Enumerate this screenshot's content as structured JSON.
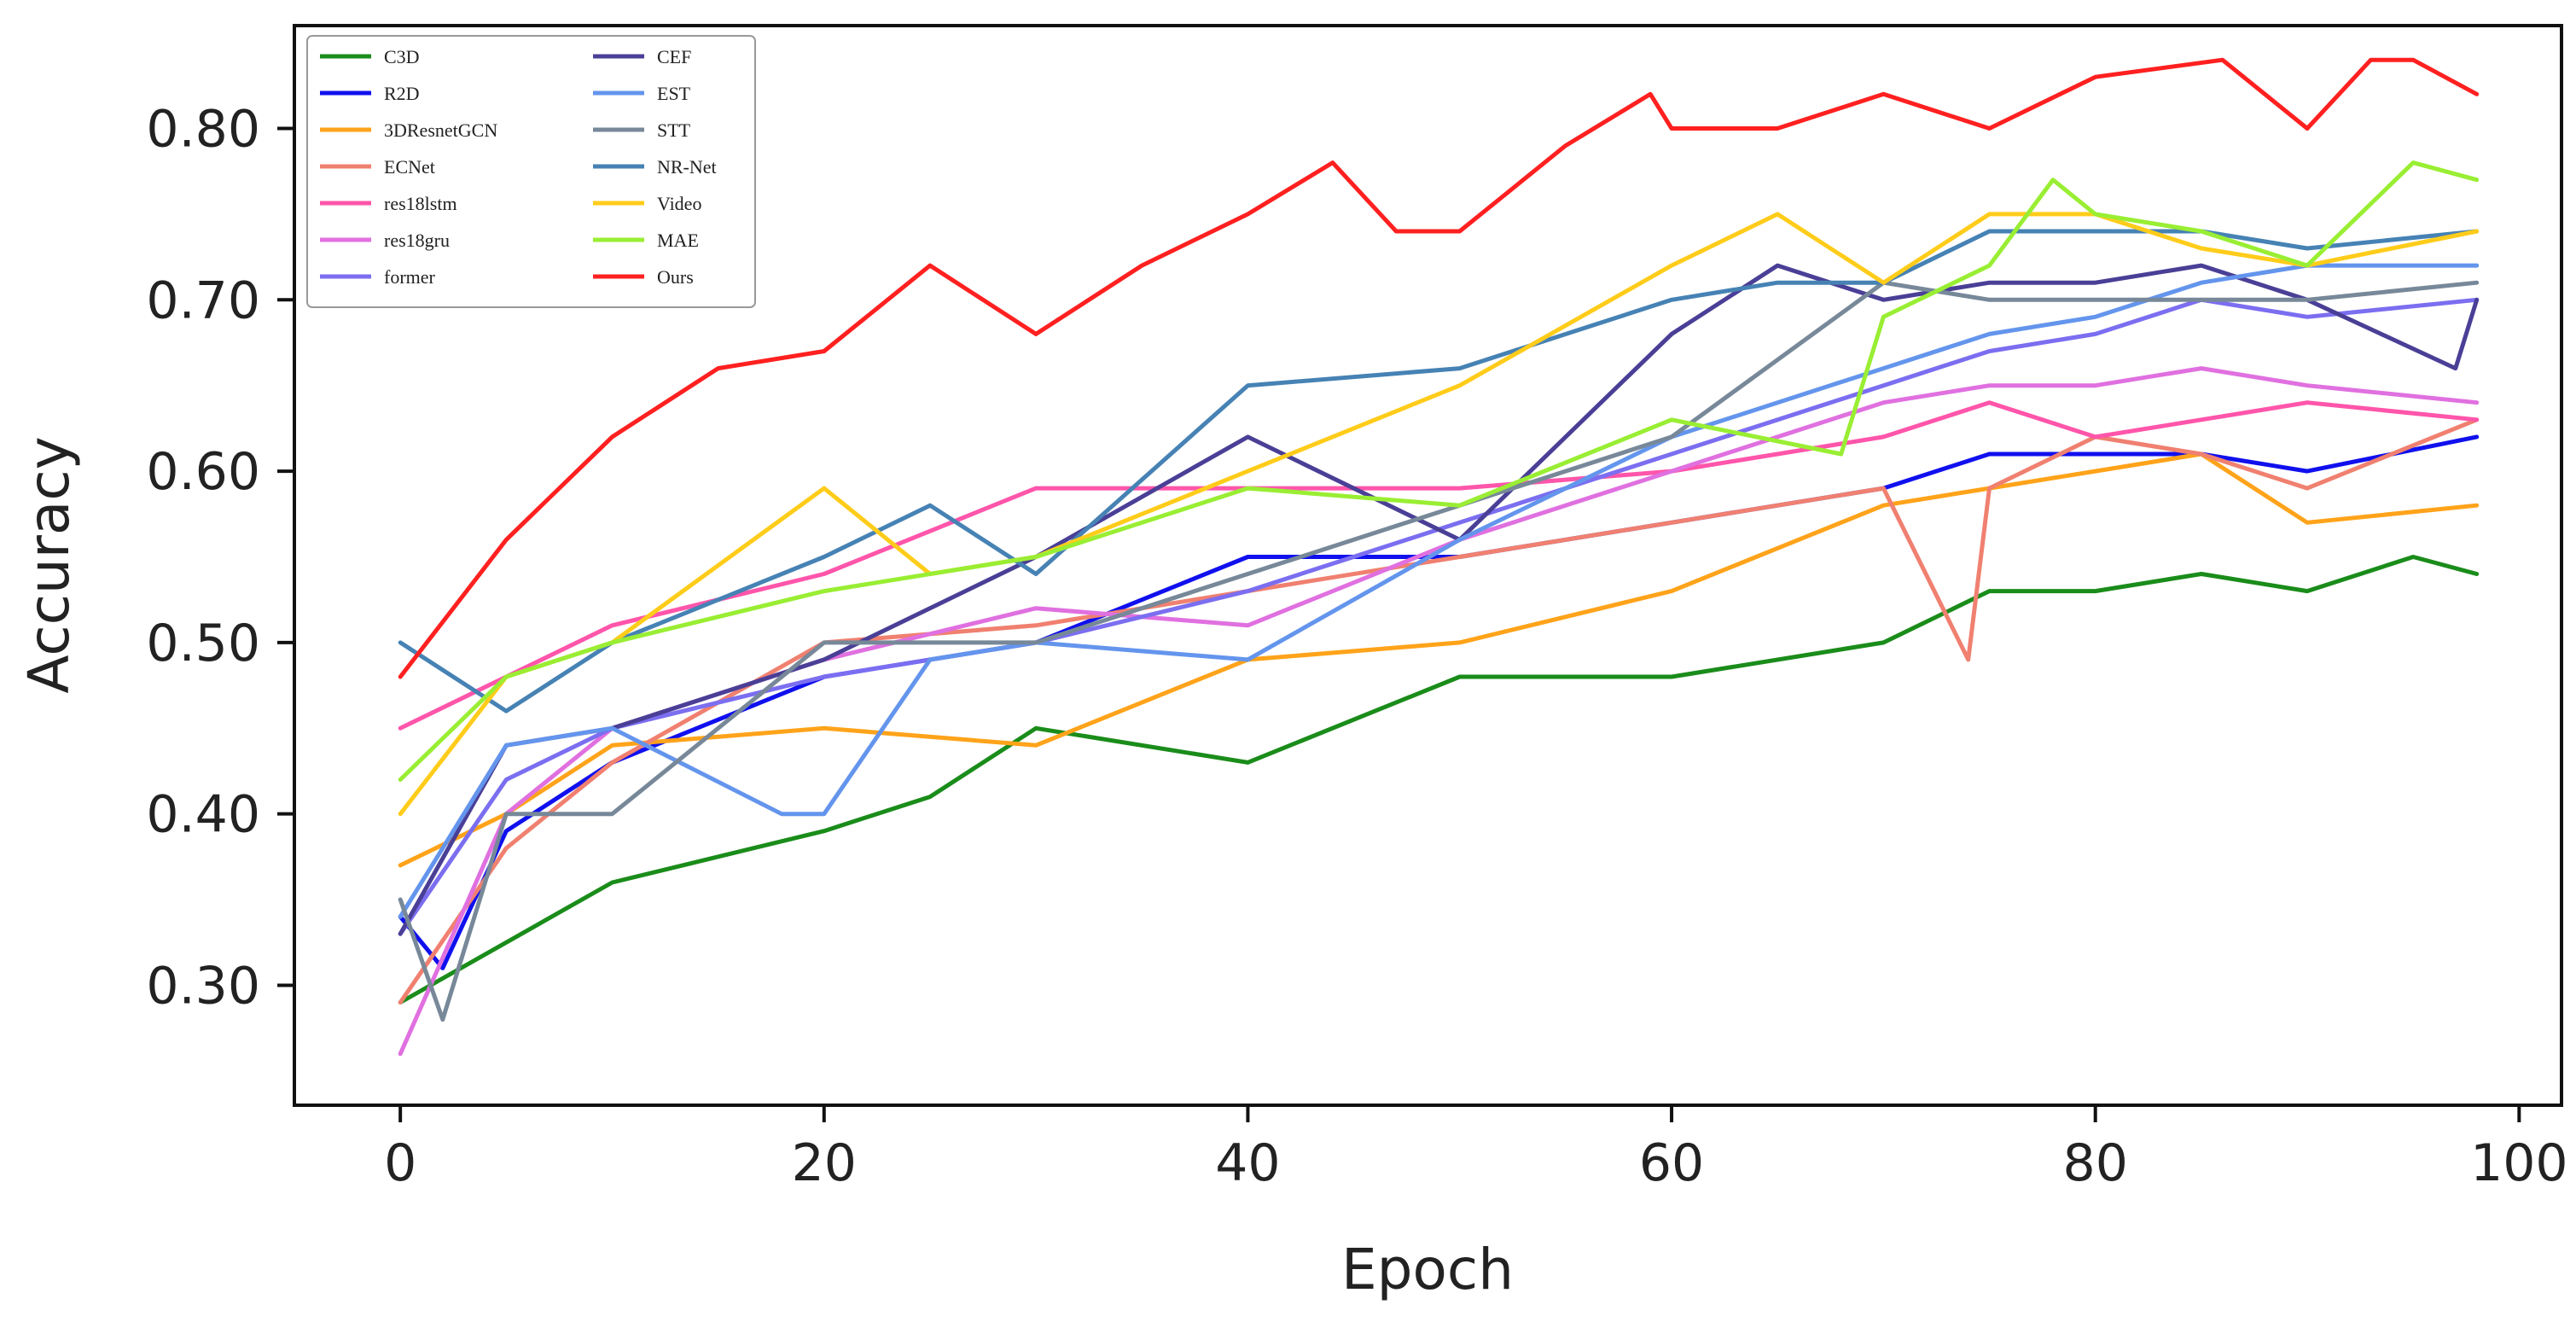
{
  "chart_data": {
    "type": "line",
    "xlabel": "Epoch",
    "ylabel": "Accuracy",
    "xlim": [
      -5,
      102
    ],
    "ylim": [
      0.23,
      0.86
    ],
    "xticks": [
      0,
      20,
      40,
      60,
      80,
      100
    ],
    "yticks": [
      0.3,
      0.4,
      0.5,
      0.6,
      0.7,
      0.8
    ],
    "ytick_labels": [
      "0.30",
      "0.40",
      "0.50",
      "0.60",
      "0.70",
      "0.80"
    ],
    "grid": false,
    "legend_position": "top-left",
    "legend_columns": 2,
    "series": [
      {
        "name": "C3D",
        "color": "#1a8c1a",
        "x": [
          0,
          10,
          20,
          25,
          30,
          40,
          50,
          60,
          70,
          75,
          80,
          85,
          90,
          95,
          98
        ],
        "values": [
          0.29,
          0.36,
          0.39,
          0.41,
          0.45,
          0.43,
          0.48,
          0.48,
          0.5,
          0.53,
          0.53,
          0.54,
          0.53,
          0.55,
          0.54
        ]
      },
      {
        "name": "R2D",
        "color": "#1010ee",
        "x": [
          0,
          2,
          5,
          10,
          20,
          30,
          40,
          50,
          60,
          70,
          75,
          80,
          85,
          90,
          98
        ],
        "values": [
          0.34,
          0.31,
          0.39,
          0.43,
          0.48,
          0.5,
          0.55,
          0.55,
          0.57,
          0.59,
          0.61,
          0.61,
          0.61,
          0.6,
          0.62
        ]
      },
      {
        "name": "3DResnetGCN",
        "color": "#ffa31a",
        "x": [
          0,
          5,
          10,
          20,
          30,
          40,
          50,
          60,
          70,
          75,
          80,
          85,
          90,
          98
        ],
        "values": [
          0.37,
          0.4,
          0.44,
          0.45,
          0.44,
          0.49,
          0.5,
          0.53,
          0.58,
          0.59,
          0.6,
          0.61,
          0.57,
          0.58
        ]
      },
      {
        "name": "ECNet",
        "color": "#f08070",
        "x": [
          0,
          5,
          10,
          20,
          30,
          40,
          50,
          60,
          70,
          74,
          75,
          80,
          85,
          90,
          98
        ],
        "values": [
          0.29,
          0.38,
          0.43,
          0.5,
          0.51,
          0.53,
          0.55,
          0.57,
          0.59,
          0.49,
          0.59,
          0.62,
          0.61,
          0.59,
          0.63
        ]
      },
      {
        "name": "res18lstm",
        "color": "#ff55aa",
        "x": [
          0,
          5,
          10,
          20,
          30,
          40,
          50,
          60,
          70,
          75,
          80,
          85,
          90,
          98
        ],
        "values": [
          0.45,
          0.48,
          0.51,
          0.54,
          0.59,
          0.59,
          0.59,
          0.6,
          0.62,
          0.64,
          0.62,
          0.63,
          0.64,
          0.63
        ]
      },
      {
        "name": "res18gru",
        "color": "#e070e0",
        "x": [
          0,
          5,
          10,
          20,
          30,
          40,
          50,
          60,
          70,
          75,
          80,
          85,
          90,
          98
        ],
        "values": [
          0.26,
          0.4,
          0.45,
          0.49,
          0.52,
          0.51,
          0.56,
          0.6,
          0.64,
          0.65,
          0.65,
          0.66,
          0.65,
          0.64
        ]
      },
      {
        "name": "former",
        "color": "#7b6ef0",
        "x": [
          0,
          5,
          10,
          20,
          30,
          40,
          50,
          60,
          70,
          75,
          80,
          85,
          90,
          98
        ],
        "values": [
          0.33,
          0.42,
          0.45,
          0.48,
          0.5,
          0.53,
          0.57,
          0.61,
          0.65,
          0.67,
          0.68,
          0.7,
          0.69,
          0.7
        ]
      },
      {
        "name": "CEF",
        "color": "#4a3f96",
        "x": [
          0,
          5,
          10,
          20,
          30,
          40,
          50,
          60,
          65,
          70,
          75,
          80,
          85,
          90,
          97,
          98
        ],
        "values": [
          0.33,
          0.44,
          0.45,
          0.49,
          0.55,
          0.62,
          0.56,
          0.68,
          0.72,
          0.7,
          0.71,
          0.71,
          0.72,
          0.7,
          0.66,
          0.7
        ]
      },
      {
        "name": "EST",
        "color": "#6495ed",
        "x": [
          0,
          5,
          10,
          18,
          20,
          25,
          30,
          40,
          50,
          60,
          70,
          75,
          80,
          85,
          90,
          98
        ],
        "values": [
          0.34,
          0.44,
          0.45,
          0.4,
          0.4,
          0.49,
          0.5,
          0.49,
          0.56,
          0.62,
          0.66,
          0.68,
          0.69,
          0.71,
          0.72,
          0.72
        ]
      },
      {
        "name": "STT",
        "color": "#778899",
        "x": [
          0,
          2,
          5,
          10,
          20,
          30,
          40,
          50,
          60,
          70,
          75,
          80,
          85,
          90,
          98
        ],
        "values": [
          0.35,
          0.28,
          0.4,
          0.4,
          0.5,
          0.5,
          0.54,
          0.58,
          0.62,
          0.71,
          0.7,
          0.7,
          0.7,
          0.7,
          0.71
        ]
      },
      {
        "name": "NR-Net",
        "color": "#4682b4",
        "x": [
          0,
          5,
          10,
          20,
          25,
          30,
          40,
          50,
          60,
          65,
          70,
          75,
          80,
          85,
          90,
          98
        ],
        "values": [
          0.5,
          0.46,
          0.5,
          0.55,
          0.58,
          0.54,
          0.65,
          0.66,
          0.7,
          0.71,
          0.71,
          0.74,
          0.74,
          0.74,
          0.73,
          0.74
        ]
      },
      {
        "name": "Video",
        "color": "#ffcc1a",
        "x": [
          0,
          5,
          10,
          20,
          25,
          30,
          40,
          50,
          60,
          65,
          70,
          75,
          80,
          85,
          90,
          98
        ],
        "values": [
          0.4,
          0.48,
          0.5,
          0.59,
          0.54,
          0.55,
          0.6,
          0.65,
          0.72,
          0.75,
          0.71,
          0.75,
          0.75,
          0.73,
          0.72,
          0.74
        ]
      },
      {
        "name": "MAE",
        "color": "#99ee33",
        "x": [
          0,
          5,
          10,
          20,
          30,
          40,
          50,
          60,
          68,
          70,
          75,
          78,
          80,
          85,
          90,
          95,
          98
        ],
        "values": [
          0.42,
          0.48,
          0.5,
          0.53,
          0.55,
          0.59,
          0.58,
          0.63,
          0.61,
          0.69,
          0.72,
          0.77,
          0.75,
          0.74,
          0.72,
          0.78,
          0.77
        ]
      },
      {
        "name": "Ours",
        "color": "#ff2020",
        "x": [
          0,
          5,
          10,
          15,
          20,
          25,
          30,
          35,
          40,
          44,
          47,
          50,
          55,
          59,
          60,
          65,
          70,
          75,
          80,
          86,
          90,
          93,
          95,
          98
        ],
        "values": [
          0.48,
          0.56,
          0.62,
          0.66,
          0.67,
          0.72,
          0.68,
          0.72,
          0.75,
          0.78,
          0.74,
          0.74,
          0.79,
          0.82,
          0.8,
          0.8,
          0.82,
          0.8,
          0.83,
          0.84,
          0.8,
          0.84,
          0.84,
          0.82
        ]
      }
    ]
  }
}
